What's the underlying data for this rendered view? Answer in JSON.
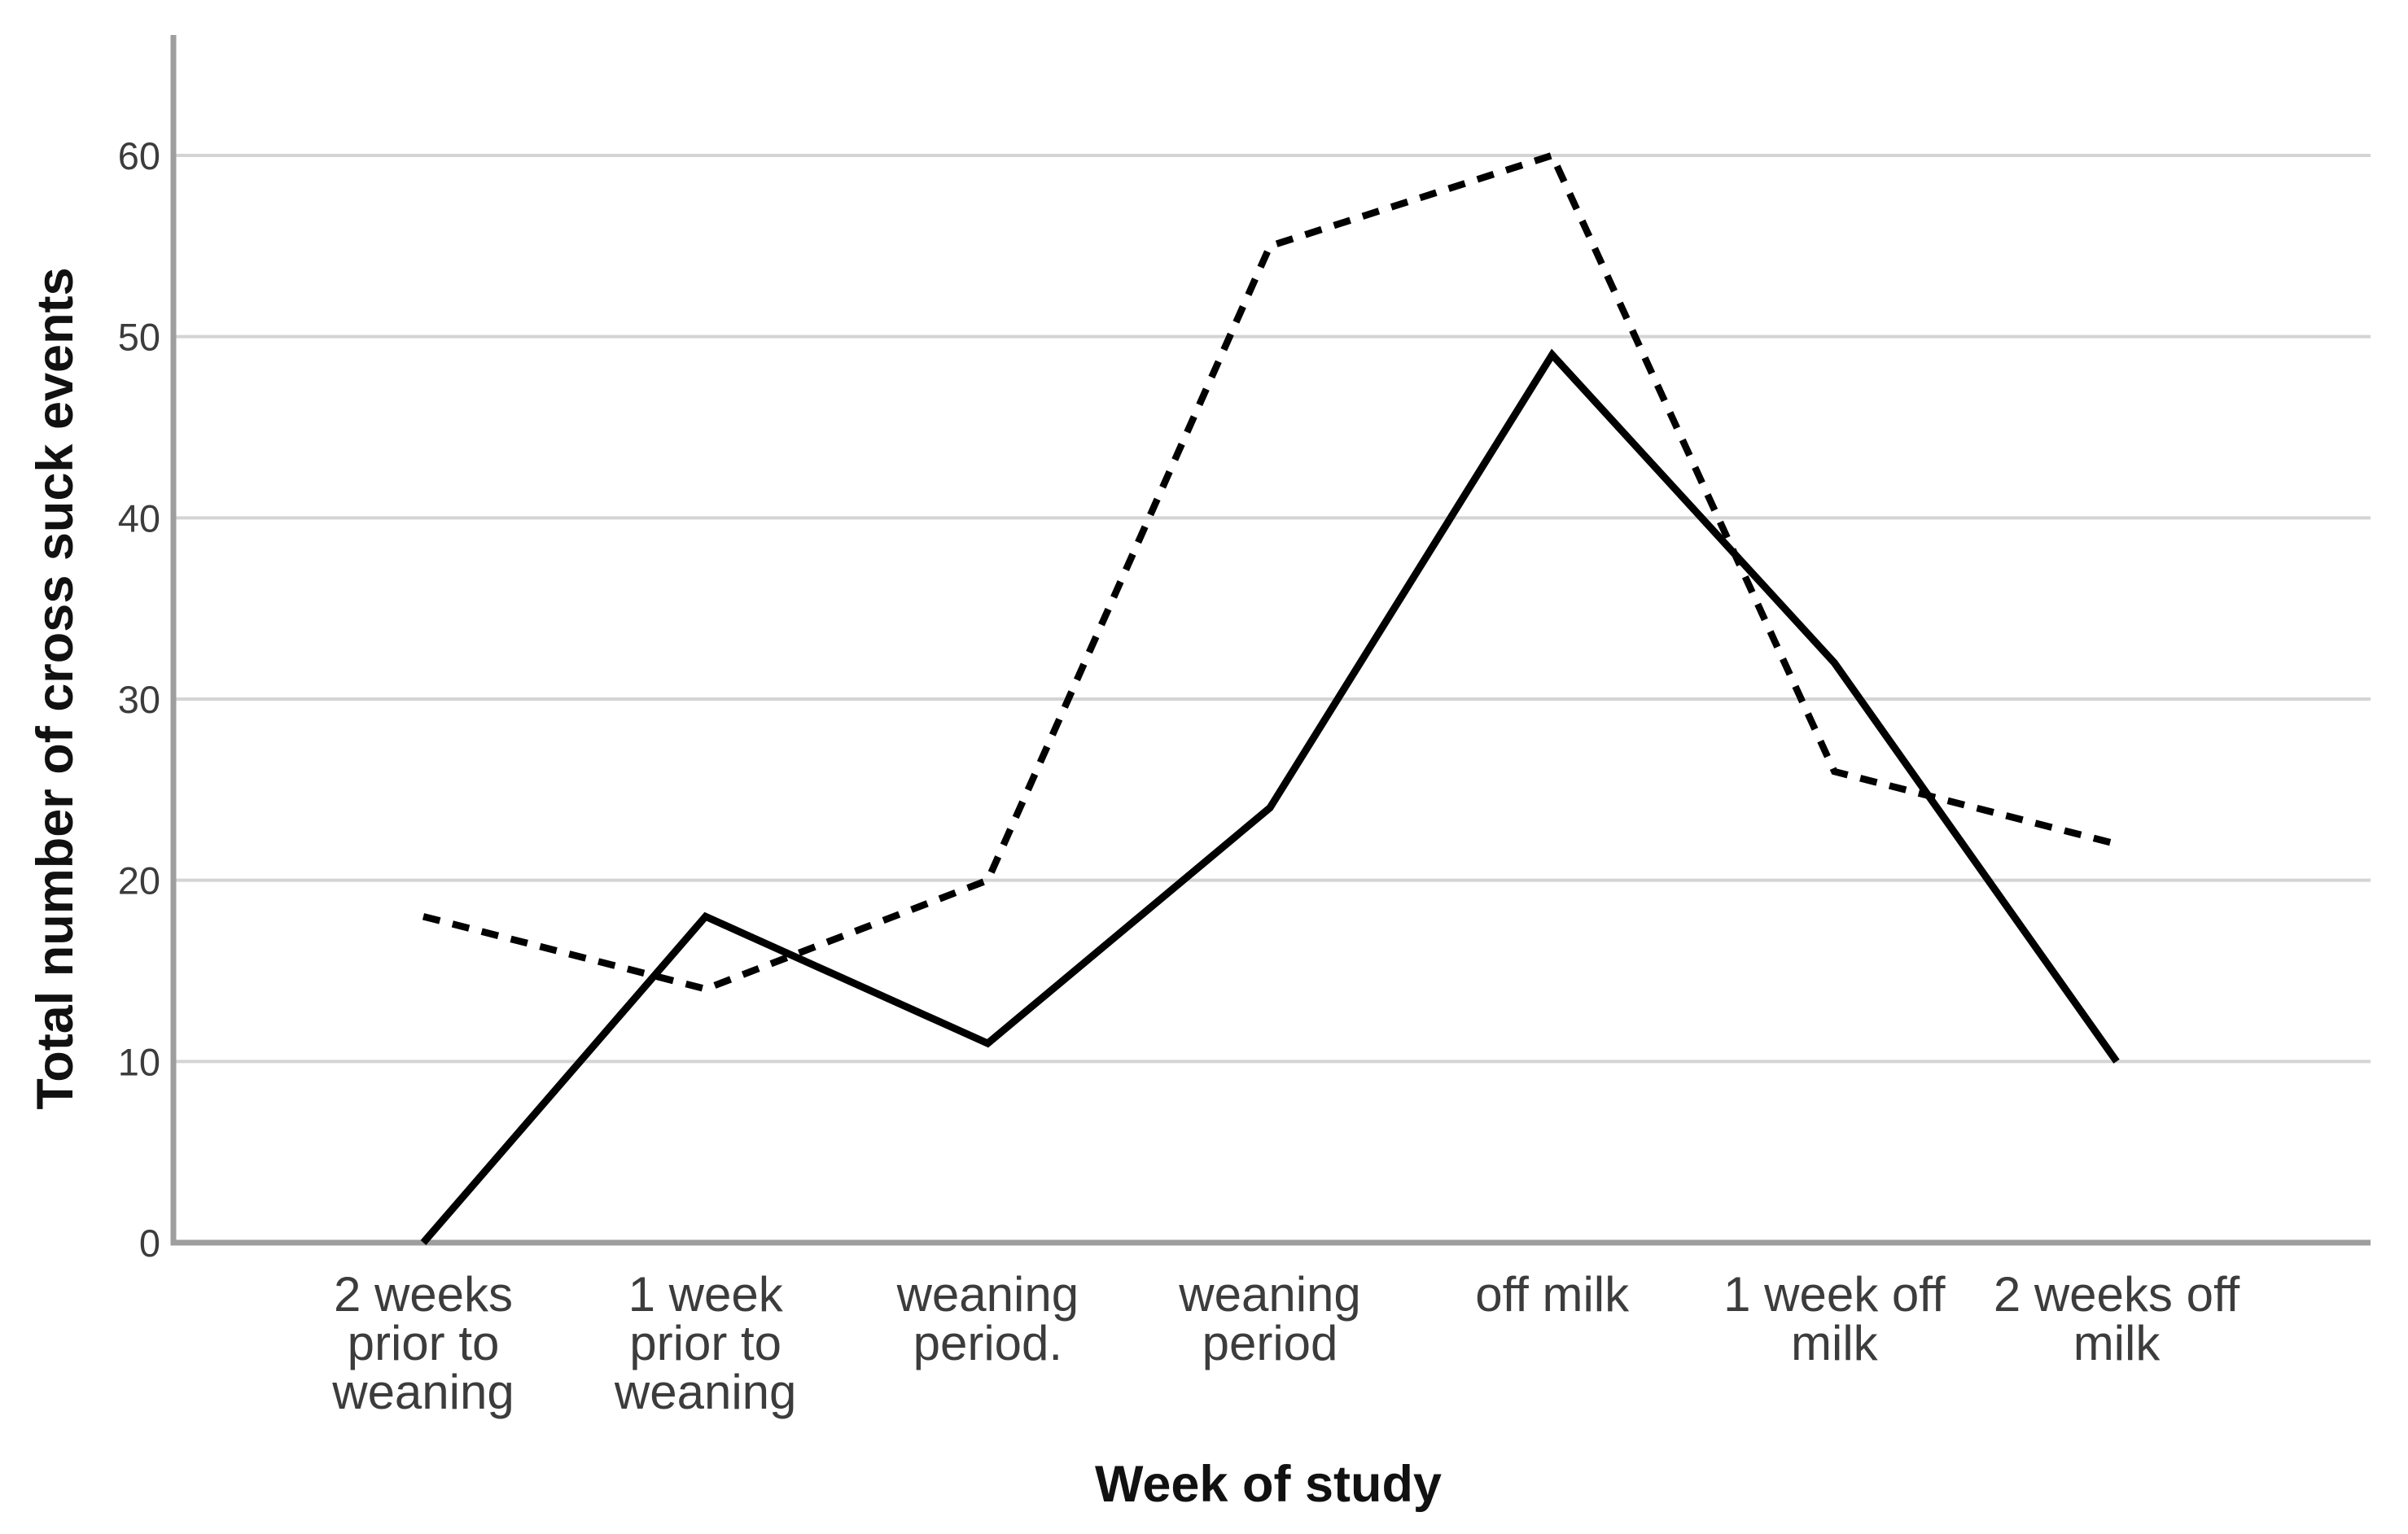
{
  "figure": {
    "background_color": "#ffffff",
    "text_color": "#3c3c3c",
    "title_color": "#111111",
    "axis_line_color": "#9e9e9e",
    "gridline_color": "#d4d4d4",
    "series_color": "#000000"
  },
  "chart_data": {
    "type": "line",
    "title": "",
    "xlabel": "Week of study",
    "ylabel": "Total number of cross suck events",
    "categories": [
      "2 weeks prior to weaning",
      "1 week prior to weaning",
      "weaning period.",
      "weaning period",
      "off milk",
      "1 week off milk",
      "2 weeks off milk"
    ],
    "category_lines": [
      [
        "2 weeks",
        "prior to",
        "weaning"
      ],
      [
        "1 week",
        "prior to",
        "weaning"
      ],
      [
        "weaning",
        "period."
      ],
      [
        "weaning",
        "period"
      ],
      [
        "off milk"
      ],
      [
        "1 week off",
        "milk"
      ],
      [
        "2 weeks off",
        "milk"
      ]
    ],
    "series": [
      {
        "name": "dashed",
        "style": "dashed",
        "values": [
          18,
          14,
          20,
          55,
          60,
          26,
          22
        ]
      },
      {
        "name": "solid",
        "style": "solid",
        "values": [
          0,
          18,
          11,
          24,
          49,
          32,
          10
        ]
      }
    ],
    "ylim": [
      0,
      66
    ],
    "yticks": [
      0,
      10,
      20,
      30,
      40,
      50,
      60
    ],
    "grid": "horizontal",
    "legend": "none"
  }
}
